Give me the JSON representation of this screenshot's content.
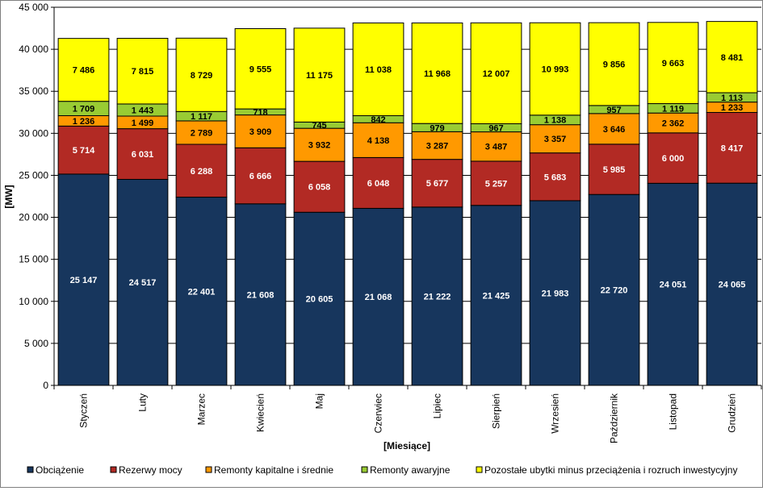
{
  "chart_data": {
    "type": "bar",
    "stacked": true,
    "title": "",
    "xlabel": "[Miesiące]",
    "ylabel": "[MW]",
    "ylim": [
      0,
      45000
    ],
    "ytick_step": 5000,
    "ytick_labels": [
      "0",
      "5 000",
      "10 000",
      "15 000",
      "20 000",
      "25 000",
      "30 000",
      "35 000",
      "40 000",
      "45 000"
    ],
    "grid": true,
    "legend_position": "bottom",
    "categories": [
      "Styczeń",
      "Luty",
      "Marzec",
      "Kwiecień",
      "Maj",
      "Czerwiec",
      "Lipiec",
      "Sierpień",
      "Wrzesień",
      "Październik",
      "Listopad",
      "Grudzień"
    ],
    "series": [
      {
        "name": "Obciążenie",
        "color": "#17365d",
        "label_color": "#ffffff",
        "values": [
          25147,
          24517,
          22401,
          21608,
          20605,
          21068,
          21222,
          21425,
          21983,
          22720,
          24051,
          24065
        ],
        "labels": [
          "25 147",
          "24 517",
          "22 401",
          "21 608",
          "20 605",
          "21 068",
          "21 222",
          "21 425",
          "21 983",
          "22 720",
          "24 051",
          "24 065"
        ]
      },
      {
        "name": "Rezerwy mocy",
        "color": "#b22a24",
        "label_color": "#ffffff",
        "values": [
          5714,
          6031,
          6288,
          6666,
          6058,
          6048,
          5677,
          5257,
          5683,
          5985,
          6000,
          8417
        ],
        "labels": [
          "5 714",
          "6 031",
          "6 288",
          "6 666",
          "6 058",
          "6 048",
          "5 677",
          "5 257",
          "5 683",
          "5 985",
          "6 000",
          "8 417"
        ]
      },
      {
        "name": "Remonty kapitalne i średnie",
        "color": "#ff9900",
        "label_color": "#000000",
        "values": [
          1236,
          1499,
          2789,
          3909,
          3932,
          4138,
          3287,
          3487,
          3357,
          3646,
          2362,
          1233
        ],
        "labels": [
          "1 236",
          "1 499",
          "2 789",
          "3 909",
          "3 932",
          "4 138",
          "3 287",
          "3 487",
          "3 357",
          "3 646",
          "2 362",
          "1 233"
        ]
      },
      {
        "name": "Remonty awaryjne",
        "color": "#99cc33",
        "label_color": "#000000",
        "values": [
          1709,
          1443,
          1117,
          718,
          745,
          842,
          979,
          967,
          1138,
          957,
          1119,
          1113
        ],
        "labels": [
          "1 709",
          "1 443",
          "1 117",
          "718",
          "745",
          "842",
          "979",
          "967",
          "1 138",
          "957",
          "1 119",
          "1 113"
        ]
      },
      {
        "name": "Pozostałe ubytki minus przeciążenia i rozruch inwestycyjny",
        "color": "#ffff00",
        "label_color": "#000000",
        "values": [
          7486,
          7815,
          8729,
          9555,
          11175,
          11038,
          11968,
          12007,
          10993,
          9856,
          9663,
          8481
        ],
        "labels": [
          "7 486",
          "7 815",
          "8 729",
          "9 555",
          "11 175",
          "11 038",
          "11 968",
          "12 007",
          "10 993",
          "9 856",
          "9 663",
          "8 481"
        ]
      }
    ]
  }
}
